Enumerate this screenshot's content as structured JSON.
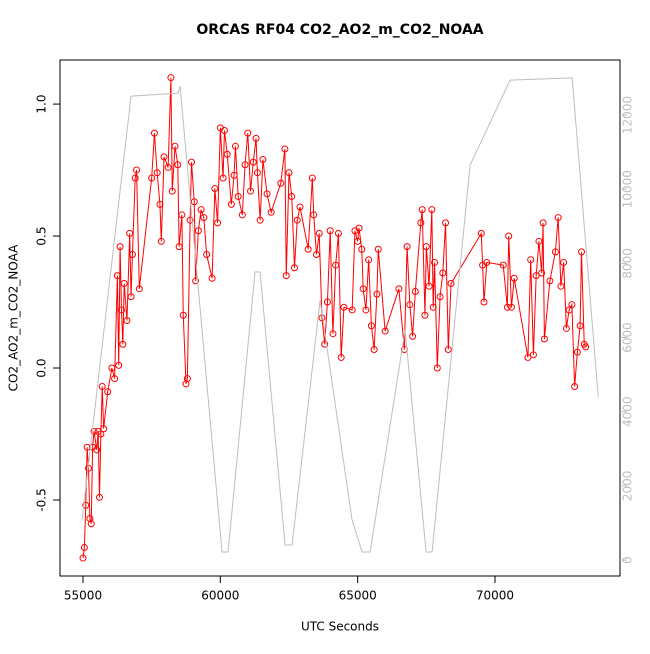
{
  "chart_data": {
    "type": "line",
    "title": "ORCAS RF04 CO2_AO2_m_CO2_NOAA",
    "xlabel": "UTC Seconds",
    "ylabel": "CO2_AO2_m_CO2_NOAA",
    "xlim": [
      54162,
      74552
    ],
    "ylim": [
      -0.788,
      1.167
    ],
    "y2lim": [
      -431,
      13483
    ],
    "xticks": [
      55000,
      60000,
      65000,
      70000
    ],
    "yticks": [
      -0.5,
      {
        "value": 0,
        "label": "0.0"
      },
      0.5,
      {
        "value": 1,
        "label": "1.0"
      }
    ],
    "y2ticks": [
      0,
      2000,
      4000,
      6000,
      8000,
      10000,
      12000
    ],
    "series": [
      {
        "color": "#ff0000",
        "markers": true,
        "x": [
          55000,
          55050,
          55100,
          55150,
          55200,
          55250,
          55300,
          55350,
          55400,
          55500,
          55550,
          55600,
          55650,
          55700,
          55750,
          55900,
          56050,
          56150,
          56250,
          56300,
          56350,
          56400,
          56450,
          56500,
          56600,
          56700,
          56750,
          56800,
          56900,
          56950,
          57050,
          57500,
          57600,
          57700,
          57800,
          57850,
          57950,
          58100,
          58200,
          58250,
          58350,
          58450,
          58500,
          58600,
          58650,
          58750,
          58800,
          58900,
          58950,
          59050,
          59100,
          59200,
          59300,
          59400,
          59500,
          59700,
          59800,
          59900,
          60000,
          60100,
          60150,
          60250,
          60400,
          60500,
          60550,
          60650,
          60800,
          60900,
          61000,
          61100,
          61200,
          61300,
          61350,
          61450,
          61550,
          61700,
          61850,
          62200,
          62350,
          62400,
          62500,
          62600,
          62700,
          62800,
          62900,
          63200,
          63350,
          63400,
          63500,
          63600,
          63700,
          63800,
          63900,
          64000,
          64100,
          64200,
          64300,
          64400,
          64500,
          64800,
          64900,
          65000,
          65050,
          65150,
          65200,
          65300,
          65400,
          65500,
          65600,
          65700,
          65750,
          66000,
          66500,
          66700,
          66800,
          66900,
          67000,
          67100,
          67300,
          67350,
          67450,
          67500,
          67600,
          67700,
          67750,
          67800,
          67900,
          68000,
          68100,
          68200,
          68300,
          68400,
          69500,
          69550,
          69600,
          69700,
          70300,
          70450,
          70500,
          70600,
          70700,
          71200,
          71300,
          71400,
          71500,
          71600,
          71700,
          71750,
          71800,
          72000,
          72200,
          72300,
          72400,
          72500,
          72600,
          72700,
          72800,
          72900,
          73000,
          73100,
          73150,
          73250,
          73300
        ],
        "values": [
          -0.72,
          -0.68,
          -0.52,
          -0.3,
          -0.38,
          -0.57,
          -0.59,
          -0.3,
          -0.24,
          -0.31,
          -0.24,
          -0.49,
          -0.25,
          -0.07,
          -0.23,
          -0.09,
          0.0,
          -0.04,
          0.35,
          0.01,
          0.46,
          0.22,
          0.09,
          0.32,
          0.18,
          0.51,
          0.27,
          0.43,
          0.72,
          0.75,
          0.3,
          0.72,
          0.89,
          0.74,
          0.62,
          0.48,
          0.8,
          0.76,
          1.1,
          0.67,
          0.84,
          0.77,
          0.46,
          0.58,
          0.2,
          -0.06,
          -0.04,
          0.56,
          0.78,
          0.63,
          0.33,
          0.52,
          0.6,
          0.57,
          0.43,
          0.34,
          0.68,
          0.55,
          0.91,
          0.72,
          0.9,
          0.81,
          0.62,
          0.73,
          0.84,
          0.65,
          0.58,
          0.77,
          0.89,
          0.67,
          0.78,
          0.87,
          0.74,
          0.56,
          0.79,
          0.66,
          0.59,
          0.7,
          0.83,
          0.35,
          0.74,
          0.65,
          0.38,
          0.56,
          0.61,
          0.45,
          0.72,
          0.58,
          0.43,
          0.51,
          0.19,
          0.09,
          0.25,
          0.52,
          0.13,
          0.39,
          0.51,
          0.04,
          0.23,
          0.22,
          0.52,
          0.48,
          0.53,
          0.45,
          0.3,
          0.22,
          0.41,
          0.16,
          0.07,
          0.28,
          0.45,
          0.14,
          0.3,
          0.07,
          0.46,
          0.24,
          0.12,
          0.29,
          0.55,
          0.6,
          0.2,
          0.46,
          0.31,
          0.6,
          0.23,
          0.4,
          0.0,
          0.27,
          0.36,
          0.55,
          0.07,
          0.32,
          0.51,
          0.39,
          0.25,
          0.4,
          0.39,
          0.23,
          0.5,
          0.23,
          0.34,
          0.04,
          0.41,
          0.05,
          0.35,
          0.48,
          0.36,
          0.55,
          0.11,
          0.33,
          0.44,
          0.57,
          0.31,
          0.4,
          0.15,
          0.22,
          0.24,
          -0.07,
          0.06,
          0.16,
          0.44,
          0.09,
          0.08
        ]
      },
      {
        "color": "#bebebe",
        "markers": false,
        "axis": "y2",
        "x": [
          54964,
          56748,
          58460,
          58533,
          60062,
          60281,
          61264,
          61447,
          62357,
          62612,
          63632,
          64797,
          65161,
          65453,
          66727,
          67492,
          67710,
          69095,
          70550,
          72810,
          73760
        ],
        "values": [
          1078,
          12510,
          12590,
          12780,
          216,
          216,
          7765,
          7765,
          404,
          404,
          7010,
          1078,
          216,
          216,
          6200,
          216,
          216,
          10650,
          12940,
          13000,
          4395
        ]
      }
    ]
  }
}
